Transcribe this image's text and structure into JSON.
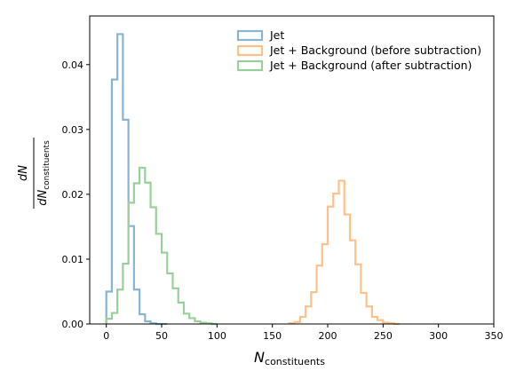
{
  "chart_data": {
    "type": "histogram",
    "xlabel_main": "N",
    "xlabel_sub": "constituents",
    "ylabel_numerator": "dN",
    "ylabel_denominator_main": "dN",
    "ylabel_denominator_sub": "constituents",
    "xlim": [
      -15,
      350
    ],
    "ylim": [
      0,
      0.0475
    ],
    "x_ticks": [
      0,
      50,
      100,
      150,
      200,
      250,
      300,
      350
    ],
    "x_tick_labels": [
      "0",
      "50",
      "100",
      "150",
      "200",
      "250",
      "300",
      "350"
    ],
    "y_ticks": [
      0.0,
      0.01,
      0.02,
      0.03,
      0.04
    ],
    "y_tick_labels": [
      "0.00",
      "0.01",
      "0.02",
      "0.03",
      "0.04"
    ],
    "grid": false,
    "legend_position": "top-center",
    "series": [
      {
        "name": "Jet",
        "color": "#87b5d6",
        "bin_width": 5,
        "x_start": 0,
        "values": [
          0.005,
          0.0377,
          0.0447,
          0.0315,
          0.0151,
          0.0053,
          0.0015,
          0.0004,
          0.0001,
          0.0,
          0.0
        ]
      },
      {
        "name": "Jet + Background (before subtraction)",
        "color": "#fdc189",
        "bin_width": 5,
        "x_start": 165,
        "values": [
          0.0001,
          0.0003,
          0.0011,
          0.0027,
          0.0049,
          0.009,
          0.0123,
          0.0181,
          0.0201,
          0.0221,
          0.0169,
          0.0129,
          0.0092,
          0.0048,
          0.0027,
          0.0011,
          0.0006,
          0.0002,
          0.0001,
          0.0
        ]
      },
      {
        "name": "Jet + Background (after subtraction)",
        "color": "#99d099",
        "bin_width": 5,
        "x_start": 0,
        "values": [
          0.0008,
          0.0017,
          0.0053,
          0.0093,
          0.0187,
          0.0217,
          0.0241,
          0.0218,
          0.018,
          0.0139,
          0.011,
          0.0078,
          0.0055,
          0.0033,
          0.0016,
          0.0009,
          0.0004,
          0.0002,
          0.0001,
          0.0
        ]
      }
    ]
  }
}
